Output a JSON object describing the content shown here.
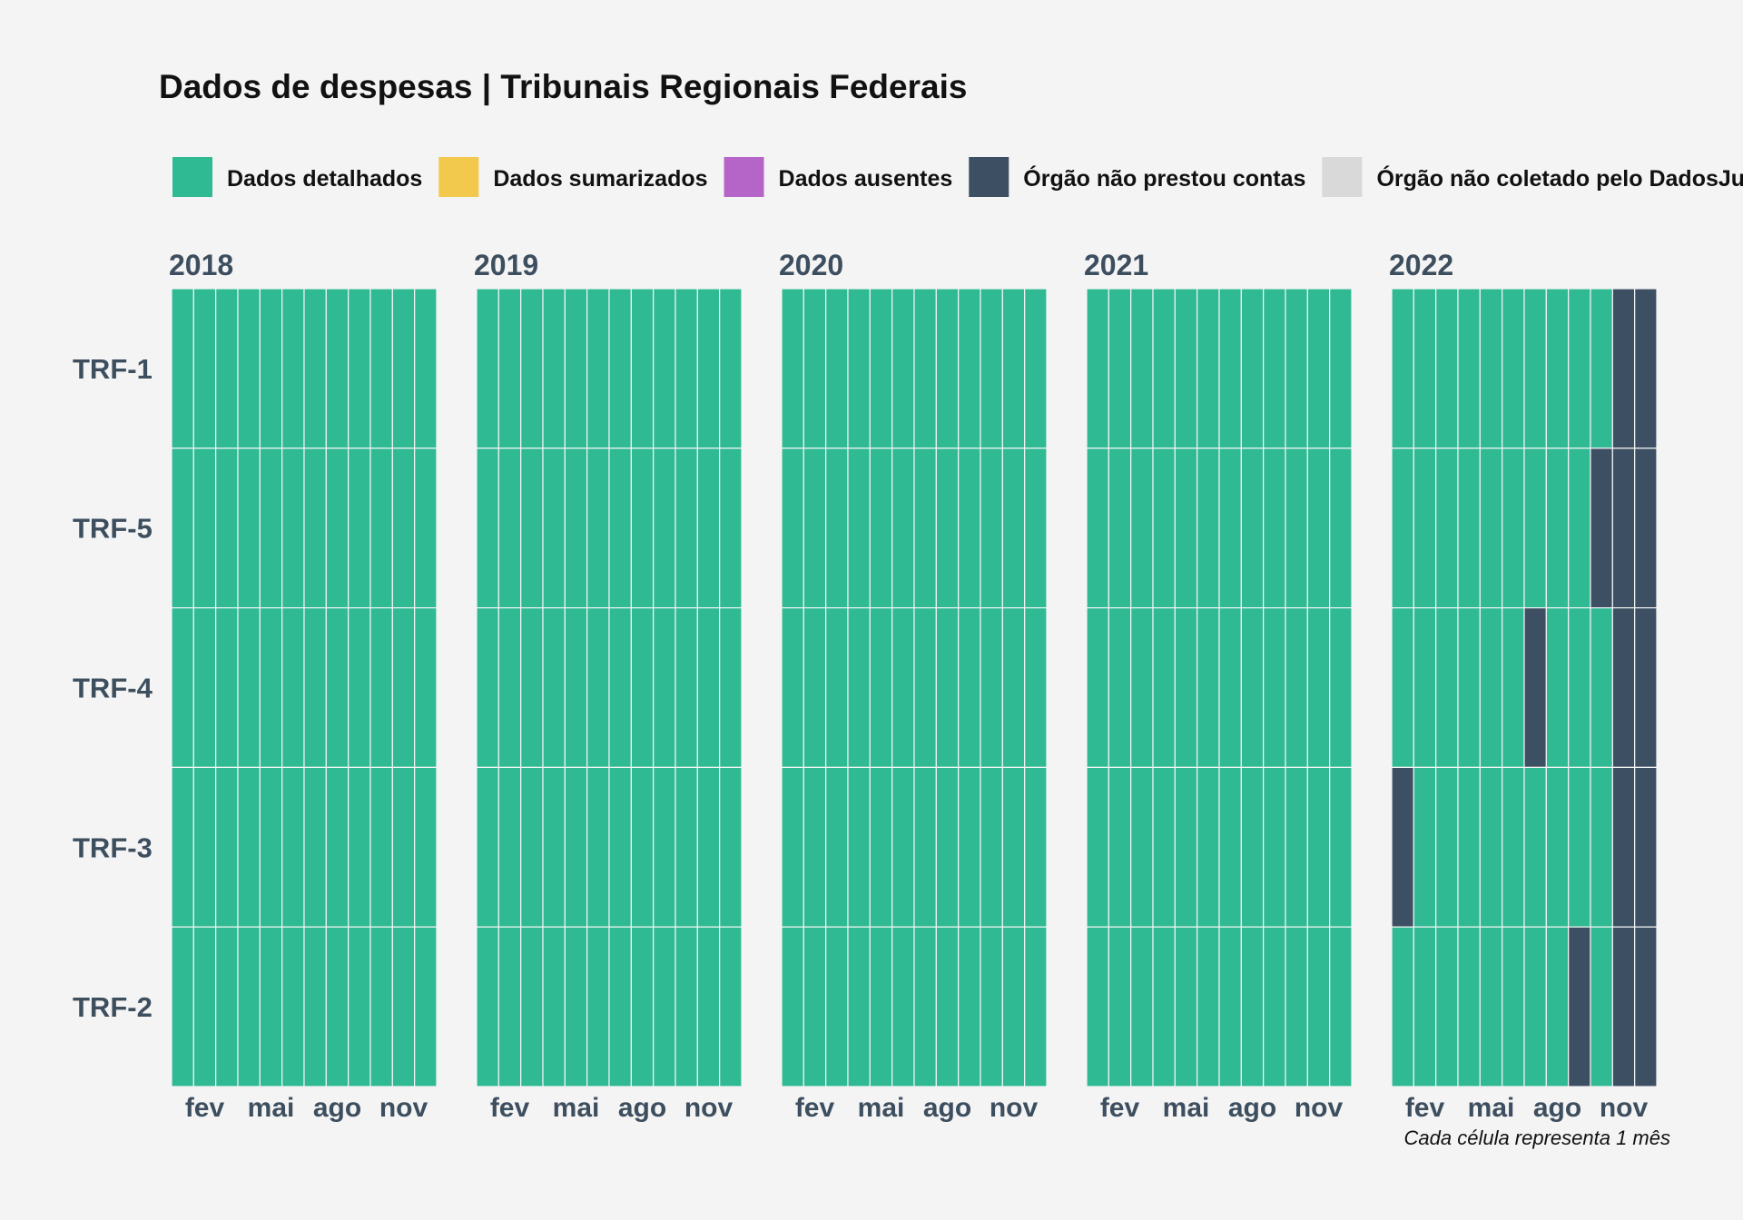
{
  "chart_data": {
    "type": "heatmap",
    "title": "Dados de despesas | Tribunais Regionais Federais",
    "caption": "Cada célula representa 1 mês",
    "legend_position": "top",
    "legend": [
      {
        "key": "detalhados",
        "label": "Dados detalhados",
        "color": "#2fba93"
      },
      {
        "key": "sumarizados",
        "label": "Dados sumarizados",
        "color": "#f2c94c"
      },
      {
        "key": "ausentes",
        "label": "Dados ausentes",
        "color": "#b565c7"
      },
      {
        "key": "nao_prestou",
        "label": "Órgão não prestou contas",
        "color": "#3d5063"
      },
      {
        "key": "nao_coletado",
        "label": "Órgão não coletado pelo DadosJusBr",
        "color": "#d9d9d9"
      }
    ],
    "years": [
      "2018",
      "2019",
      "2020",
      "2021",
      "2022"
    ],
    "rows": [
      "TRF-1",
      "TRF-5",
      "TRF-4",
      "TRF-3",
      "TRF-2"
    ],
    "x_ticks": [
      {
        "month": 2,
        "label": "fev"
      },
      {
        "month": 5,
        "label": "mai"
      },
      {
        "month": 8,
        "label": "ago"
      },
      {
        "month": 11,
        "label": "nov"
      }
    ],
    "default_status": "detalhados",
    "exceptions": [
      {
        "year": "2022",
        "row": "TRF-1",
        "months": [
          11,
          12
        ],
        "status": "nao_prestou"
      },
      {
        "year": "2022",
        "row": "TRF-5",
        "months": [
          10,
          11,
          12
        ],
        "status": "nao_prestou"
      },
      {
        "year": "2022",
        "row": "TRF-4",
        "months": [
          7,
          11,
          12
        ],
        "status": "nao_prestou"
      },
      {
        "year": "2022",
        "row": "TRF-3",
        "months": [
          1,
          11,
          12
        ],
        "status": "nao_prestou"
      },
      {
        "year": "2022",
        "row": "TRF-2",
        "months": [
          9,
          11,
          12
        ],
        "status": "nao_prestou"
      }
    ]
  }
}
